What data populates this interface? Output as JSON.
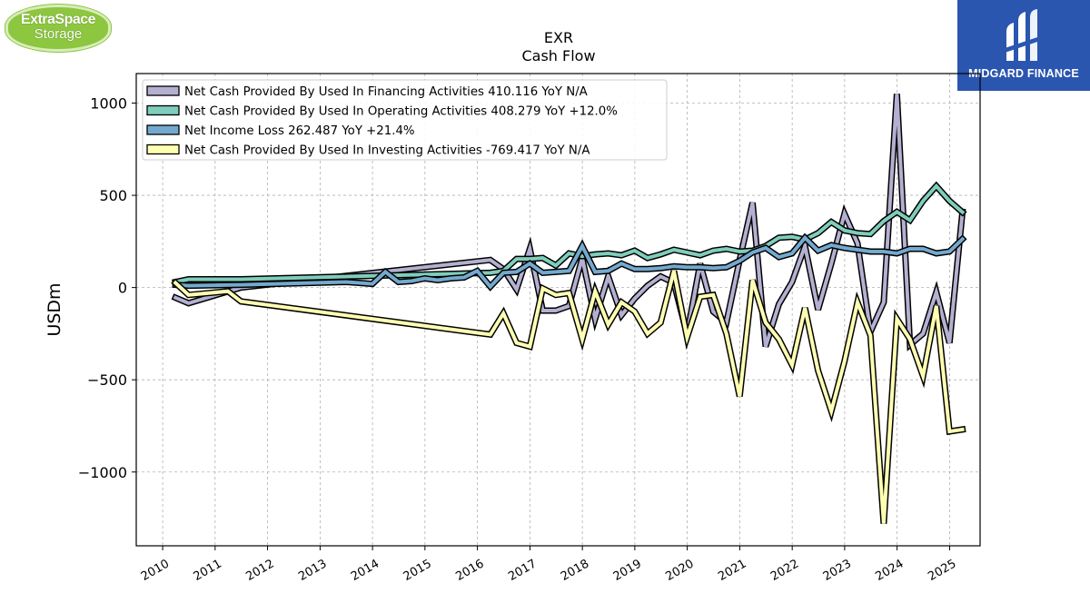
{
  "logos": {
    "left": {
      "line1": "ExtraSpace",
      "line2": "Storage",
      "color": "#8dc63f"
    },
    "right": {
      "text": "MIDGARD FINANCE",
      "color": "#2b56b0"
    }
  },
  "chart_data": {
    "type": "line",
    "title": "EXR",
    "subtitle": "Cash Flow",
    "xlabel": "",
    "ylabel": "USDm",
    "xlim": [
      "2009-07-01",
      "2025-08-01"
    ],
    "ylim": [
      -1400,
      1160
    ],
    "yticks": [
      -1000,
      -500,
      0,
      500,
      1000
    ],
    "ytick_labels": [
      "−1000",
      "−500",
      "0",
      "500",
      "1000"
    ],
    "xticks": [
      "2010-01-01",
      "2011-01-01",
      "2012-01-01",
      "2013-01-01",
      "2014-01-01",
      "2015-01-01",
      "2016-01-01",
      "2017-01-01",
      "2018-01-01",
      "2019-01-01",
      "2020-01-01",
      "2021-01-01",
      "2022-01-01",
      "2023-01-01",
      "2024-01-01",
      "2025-01-01"
    ],
    "xtick_labels": [
      "2010",
      "2011",
      "2012",
      "2013",
      "2014",
      "2015",
      "2016",
      "2017",
      "2018",
      "2019",
      "2020",
      "2021",
      "2022",
      "2023",
      "2024",
      "2025"
    ],
    "grid": true,
    "legend_position": "top-left",
    "series": [
      {
        "name": "Net Cash Provided By Used In Financing Activities",
        "legend_label": "Net Cash Provided By Used In Financing Activities  410.116 YoY N/A",
        "color": "#b3b0d1",
        "points": [
          [
            "2010-03-31",
            -55
          ],
          [
            "2010-06-30",
            -85
          ],
          [
            "2011-06-30",
            0
          ],
          [
            "2016-03-31",
            150
          ],
          [
            "2016-06-30",
            100
          ],
          [
            "2016-09-30",
            -10
          ],
          [
            "2016-12-31",
            210
          ],
          [
            "2017-03-31",
            -125
          ],
          [
            "2017-06-30",
            -125
          ],
          [
            "2017-09-30",
            -100
          ],
          [
            "2017-12-31",
            160
          ],
          [
            "2018-03-31",
            -170
          ],
          [
            "2018-06-30",
            60
          ],
          [
            "2018-09-30",
            -150
          ],
          [
            "2018-12-31",
            -60
          ],
          [
            "2019-03-31",
            10
          ],
          [
            "2019-06-30",
            60
          ],
          [
            "2019-09-30",
            25
          ],
          [
            "2019-12-31",
            -255
          ],
          [
            "2020-03-31",
            130
          ],
          [
            "2020-06-30",
            -130
          ],
          [
            "2020-09-30",
            -190
          ],
          [
            "2020-12-31",
            150
          ],
          [
            "2021-03-31",
            460
          ],
          [
            "2021-06-30",
            -320
          ],
          [
            "2021-09-30",
            -90
          ],
          [
            "2021-12-31",
            30
          ],
          [
            "2022-03-31",
            225
          ],
          [
            "2022-06-30",
            -120
          ],
          [
            "2022-09-30",
            130
          ],
          [
            "2022-12-31",
            400
          ],
          [
            "2023-03-31",
            240
          ],
          [
            "2023-06-30",
            -240
          ],
          [
            "2023-09-30",
            -80
          ],
          [
            "2023-12-31",
            1050
          ],
          [
            "2024-03-31",
            -310
          ],
          [
            "2024-06-30",
            -250
          ],
          [
            "2024-09-30",
            -25
          ],
          [
            "2024-12-31",
            -300
          ],
          [
            "2025-03-31",
            410.116
          ]
        ]
      },
      {
        "name": "Net Cash Provided By Used In Operating Activities",
        "legend_label": "Net Cash Provided By Used In Operating Activities  408.279 YoY +12.0%",
        "color": "#7fcdbb",
        "points": [
          [
            "2010-03-31",
            30
          ],
          [
            "2010-06-30",
            45
          ],
          [
            "2011-06-30",
            45
          ],
          [
            "2016-03-31",
            80
          ],
          [
            "2016-06-30",
            90
          ],
          [
            "2016-09-30",
            155
          ],
          [
            "2016-12-31",
            155
          ],
          [
            "2017-03-31",
            160
          ],
          [
            "2017-06-30",
            120
          ],
          [
            "2017-09-30",
            185
          ],
          [
            "2017-12-31",
            170
          ],
          [
            "2018-03-31",
            180
          ],
          [
            "2018-06-30",
            185
          ],
          [
            "2018-09-30",
            175
          ],
          [
            "2018-12-31",
            200
          ],
          [
            "2019-03-31",
            160
          ],
          [
            "2019-06-30",
            180
          ],
          [
            "2019-09-30",
            205
          ],
          [
            "2019-12-31",
            190
          ],
          [
            "2020-03-31",
            175
          ],
          [
            "2020-06-30",
            200
          ],
          [
            "2020-09-30",
            210
          ],
          [
            "2020-12-31",
            195
          ],
          [
            "2021-03-31",
            200
          ],
          [
            "2021-06-30",
            225
          ],
          [
            "2021-09-30",
            270
          ],
          [
            "2021-12-31",
            275
          ],
          [
            "2022-03-31",
            260
          ],
          [
            "2022-06-30",
            295
          ],
          [
            "2022-09-30",
            355
          ],
          [
            "2022-12-31",
            310
          ],
          [
            "2023-03-31",
            295
          ],
          [
            "2023-06-30",
            290
          ],
          [
            "2023-09-30",
            360
          ],
          [
            "2023-12-31",
            410
          ],
          [
            "2024-03-31",
            365
          ],
          [
            "2024-06-30",
            470
          ],
          [
            "2024-09-30",
            550
          ],
          [
            "2024-12-31",
            470
          ],
          [
            "2025-03-31",
            408.279
          ]
        ]
      },
      {
        "name": "Net Income Loss",
        "legend_label": "Net Income Loss  262.487 YoY +21.4%",
        "color": "#74a9cf",
        "points": [
          [
            "2010-03-31",
            15
          ],
          [
            "2010-06-30",
            10
          ],
          [
            "2011-06-30",
            15
          ],
          [
            "2013-06-30",
            30
          ],
          [
            "2013-09-30",
            25
          ],
          [
            "2013-12-31",
            20
          ],
          [
            "2014-03-31",
            85
          ],
          [
            "2014-06-30",
            30
          ],
          [
            "2014-09-30",
            35
          ],
          [
            "2014-12-31",
            50
          ],
          [
            "2015-03-31",
            40
          ],
          [
            "2015-06-30",
            50
          ],
          [
            "2015-09-30",
            55
          ],
          [
            "2015-12-31",
            90
          ],
          [
            "2016-03-31",
            5
          ],
          [
            "2016-06-30",
            80
          ],
          [
            "2016-09-30",
            85
          ],
          [
            "2016-12-31",
            130
          ],
          [
            "2017-03-31",
            80
          ],
          [
            "2017-06-30",
            85
          ],
          [
            "2017-09-30",
            90
          ],
          [
            "2017-12-31",
            225
          ],
          [
            "2018-03-31",
            85
          ],
          [
            "2018-06-30",
            90
          ],
          [
            "2018-09-30",
            130
          ],
          [
            "2018-12-31",
            100
          ],
          [
            "2019-03-31",
            100
          ],
          [
            "2019-06-30",
            105
          ],
          [
            "2019-09-30",
            115
          ],
          [
            "2019-12-31",
            110
          ],
          [
            "2020-03-31",
            110
          ],
          [
            "2020-06-30",
            105
          ],
          [
            "2020-09-30",
            110
          ],
          [
            "2020-12-31",
            145
          ],
          [
            "2021-03-31",
            190
          ],
          [
            "2021-06-30",
            215
          ],
          [
            "2021-09-30",
            165
          ],
          [
            "2021-12-31",
            185
          ],
          [
            "2022-03-31",
            270
          ],
          [
            "2022-06-30",
            200
          ],
          [
            "2022-09-30",
            230
          ],
          [
            "2022-12-31",
            215
          ],
          [
            "2023-03-31",
            205
          ],
          [
            "2023-06-30",
            195
          ],
          [
            "2023-09-30",
            195
          ],
          [
            "2023-12-31",
            185
          ],
          [
            "2024-03-31",
            210
          ],
          [
            "2024-06-30",
            210
          ],
          [
            "2024-09-30",
            185
          ],
          [
            "2024-12-31",
            195
          ],
          [
            "2025-03-31",
            262.487
          ]
        ]
      },
      {
        "name": "Net Cash Provided By Used In Investing Activities",
        "legend_label": "Net Cash Provided By Used In Investing Activities  -769.417 YoY N/A",
        "color": "#ffffb3",
        "points": [
          [
            "2010-03-31",
            25
          ],
          [
            "2010-06-30",
            -40
          ],
          [
            "2011-03-31",
            -20
          ],
          [
            "2011-06-30",
            -75
          ],
          [
            "2016-03-31",
            -255
          ],
          [
            "2016-06-30",
            -140
          ],
          [
            "2016-09-30",
            -300
          ],
          [
            "2016-12-31",
            -320
          ],
          [
            "2017-03-31",
            -5
          ],
          [
            "2017-06-30",
            -40
          ],
          [
            "2017-09-30",
            -30
          ],
          [
            "2017-12-31",
            -280
          ],
          [
            "2018-03-31",
            -20
          ],
          [
            "2018-06-30",
            -200
          ],
          [
            "2018-09-30",
            -80
          ],
          [
            "2018-12-31",
            -130
          ],
          [
            "2019-03-31",
            -250
          ],
          [
            "2019-06-30",
            -190
          ],
          [
            "2019-09-30",
            90
          ],
          [
            "2019-12-31",
            -270
          ],
          [
            "2020-03-31",
            -50
          ],
          [
            "2020-06-30",
            -40
          ],
          [
            "2020-09-30",
            -250
          ],
          [
            "2020-12-31",
            -590
          ],
          [
            "2021-03-31",
            40
          ],
          [
            "2021-06-30",
            -190
          ],
          [
            "2021-09-30",
            -280
          ],
          [
            "2021-12-31",
            -420
          ],
          [
            "2022-03-31",
            -110
          ],
          [
            "2022-06-30",
            -450
          ],
          [
            "2022-09-30",
            -670
          ],
          [
            "2022-12-31",
            -400
          ],
          [
            "2023-03-31",
            -80
          ],
          [
            "2023-06-30",
            -260
          ],
          [
            "2023-09-30",
            -1280
          ],
          [
            "2023-12-31",
            -170
          ],
          [
            "2024-03-31",
            -280
          ],
          [
            "2024-06-30",
            -480
          ],
          [
            "2024-09-30",
            -100
          ],
          [
            "2024-12-31",
            -780
          ],
          [
            "2025-03-31",
            -769.417
          ]
        ]
      }
    ]
  }
}
